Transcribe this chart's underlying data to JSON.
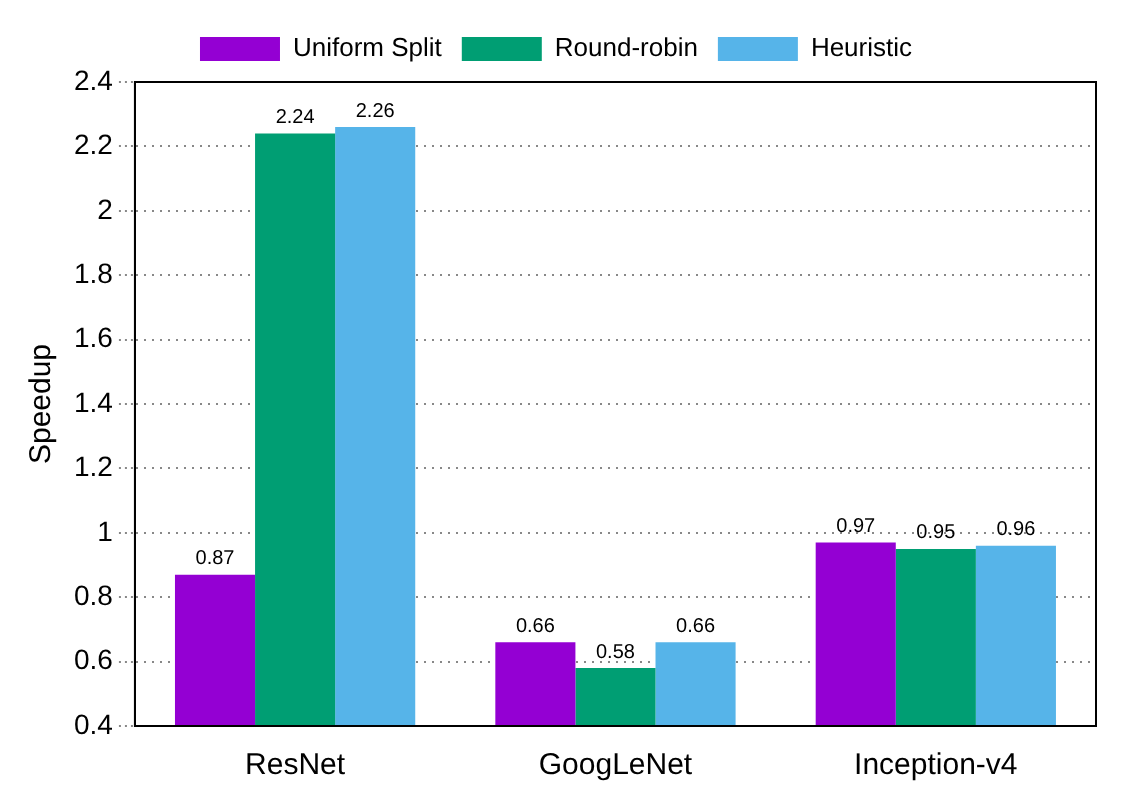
{
  "chart_data": {
    "type": "bar",
    "ylabel": "Speedup",
    "categories": [
      "ResNet",
      "GoogLeNet",
      "Inception-v4"
    ],
    "series": [
      {
        "name": "Uniform Split",
        "color": "#9400d3",
        "values": [
          0.87,
          0.66,
          0.97
        ]
      },
      {
        "name": "Round-robin",
        "color": "#009e73",
        "values": [
          2.24,
          0.58,
          0.95
        ]
      },
      {
        "name": "Heuristic",
        "color": "#56b4e9",
        "values": [
          2.26,
          0.66,
          0.96
        ]
      }
    ],
    "ylim": [
      0.4,
      2.4
    ],
    "yticks": [
      0.4,
      0.6,
      0.8,
      1,
      1.2,
      1.4,
      1.6,
      1.8,
      2,
      2.2,
      2.4
    ],
    "grid": "y",
    "legend": "top",
    "data_labels": true
  }
}
